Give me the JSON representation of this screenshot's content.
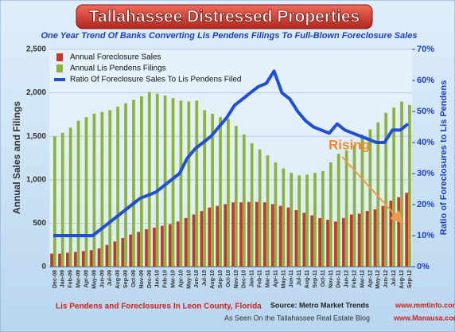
{
  "chart_data": {
    "type": "bar",
    "title": "Tallahassee  Distressed Properties",
    "subtitle": "One Year Trend Of Banks Converting Lis Pendens  Filings To Full-Blown Foreclosure Sales",
    "y_label": "Annual Sales and Filings",
    "y2_label": "Ratio of Foreclosures to Lis Pendens",
    "categories": [
      "Dec-08",
      "Jan-09",
      "Feb-09",
      "Mar-09",
      "Apr-09",
      "May-09",
      "Jun-09",
      "Jul-09",
      "Aug-09",
      "Sep-09",
      "Oct-09",
      "Nov-09",
      "Dec-09",
      "Jan-10",
      "Feb-10",
      "Mar-10",
      "Apr-10",
      "May-10",
      "Jun-10",
      "Jul-10",
      "Aug-10",
      "Sep-10",
      "Oct-10",
      "Nov-10",
      "Dec-10",
      "Jan-11",
      "Feb-11",
      "Mar-11",
      "Apr-11",
      "May-11",
      "Jun-11",
      "Jul-11",
      "Aug-11",
      "Sep-11",
      "Oct-11",
      "Nov-11",
      "Dec-11",
      "Jan-12",
      "Feb-12",
      "Mar-12",
      "Apr-12",
      "May-12",
      "Jun-12",
      "Jul-12",
      "Aug-12",
      "Sep-12"
    ],
    "series": [
      {
        "name": "Annual Foreclosure Sales",
        "color": "#c0392b",
        "values": [
          150,
          150,
          160,
          170,
          180,
          190,
          210,
          250,
          290,
          330,
          370,
          400,
          430,
          450,
          470,
          490,
          520,
          560,
          600,
          640,
          680,
          700,
          720,
          740,
          740,
          745,
          745,
          740,
          720,
          700,
          680,
          650,
          620,
          590,
          560,
          540,
          520,
          560,
          600,
          610,
          640,
          660,
          700,
          760,
          800,
          850
        ]
      },
      {
        "name": "Annual Lis Pendens Filings",
        "color": "#8cb43c",
        "values": [
          1500,
          1540,
          1600,
          1680,
          1720,
          1760,
          1780,
          1800,
          1840,
          1880,
          1920,
          1960,
          2010,
          1990,
          1970,
          1940,
          1910,
          1900,
          1910,
          1800,
          1760,
          1720,
          1700,
          1620,
          1520,
          1420,
          1350,
          1280,
          1200,
          1130,
          1080,
          1050,
          1060,
          1080,
          1100,
          1200,
          1300,
          1340,
          1400,
          1520,
          1580,
          1660,
          1770,
          1830,
          1900,
          1860
        ]
      },
      {
        "name": "Ratio Of Foreclosure Sales To Lis Pendens Filed",
        "color": "#1f4fd6",
        "axis": "y2",
        "values": [
          10,
          10,
          10,
          10,
          10,
          10,
          12,
          14,
          16,
          18,
          20,
          22,
          23,
          24,
          26,
          28,
          30,
          35,
          38,
          40,
          42,
          45,
          48,
          52,
          54,
          56,
          58,
          59,
          63,
          56,
          54,
          50,
          47,
          45,
          44,
          43,
          46,
          44,
          43,
          42,
          41,
          40,
          40,
          44,
          44,
          46
        ]
      }
    ],
    "ylim": [
      0,
      2500
    ],
    "yticks": [
      0,
      500,
      {
        "value": 1000,
        "label": "1,000"
      },
      {
        "value": 1500,
        "label": "1,500"
      },
      {
        "value": 2000,
        "label": "2,000"
      },
      {
        "value": 2500,
        "label": "2,500"
      }
    ],
    "y2lim": [
      0,
      70
    ],
    "y2ticks": [
      {
        "value": 0,
        "label": "0%"
      },
      {
        "value": 10,
        "label": "10%"
      },
      {
        "value": 20,
        "label": "20%"
      },
      {
        "value": 30,
        "label": "30%"
      },
      {
        "value": 40,
        "label": "40%"
      },
      {
        "value": 50,
        "label": "50%"
      },
      {
        "value": 60,
        "label": "60%"
      },
      {
        "value": 70,
        "label": "70%"
      }
    ],
    "grid": true,
    "legend": "top-left",
    "annotation": "Rising",
    "footer_left": "Lis Pendens and Foreclosures In Leon County, Florida",
    "source": "Source: Metro Market Trends",
    "source_url": "www.mmtinfo.com",
    "seen_on": "As Seen On the Tallahassee Real Estate Blog",
    "seen_url": "www.Manausa.com"
  }
}
